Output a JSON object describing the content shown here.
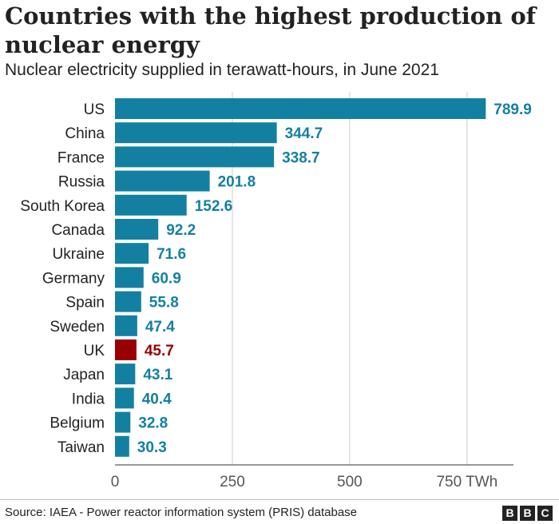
{
  "title": "Countries with the highest production of nuclear energy",
  "subtitle": "Nuclear electricity supplied in terawatt-hours, in June 2021",
  "source": "Source: IAEA - Power reactor information system (PRIS) database",
  "logo": {
    "letters": [
      "B",
      "B",
      "C"
    ]
  },
  "colors": {
    "bar": "#1380a1",
    "highlight": "#990000",
    "grid": "#cccccc",
    "axis": "#333333",
    "label": "#222222"
  },
  "chart_data": {
    "type": "bar",
    "orientation": "horizontal",
    "categories": [
      "US",
      "China",
      "France",
      "Russia",
      "South Korea",
      "Canada",
      "Ukraine",
      "Germany",
      "Spain",
      "Sweden",
      "UK",
      "Japan",
      "India",
      "Belgium",
      "Taiwan"
    ],
    "values": [
      789.9,
      344.7,
      338.7,
      201.8,
      152.6,
      92.2,
      71.6,
      60.9,
      55.8,
      47.4,
      45.7,
      43.1,
      40.4,
      32.8,
      30.3
    ],
    "value_labels": [
      "789.9",
      "344.7",
      "338.7",
      "201.8",
      "152.6",
      "92.2",
      "71.6",
      "60.9",
      "55.8",
      "47.4",
      "45.7",
      "43.1",
      "40.4",
      "32.8",
      "30.3"
    ],
    "highlight_category": "UK",
    "xlim": [
      0,
      850
    ],
    "xticks": [
      0,
      250,
      500,
      750
    ],
    "xtick_labels": [
      "0",
      "250",
      "500",
      "750 TWh"
    ],
    "grid": true
  }
}
